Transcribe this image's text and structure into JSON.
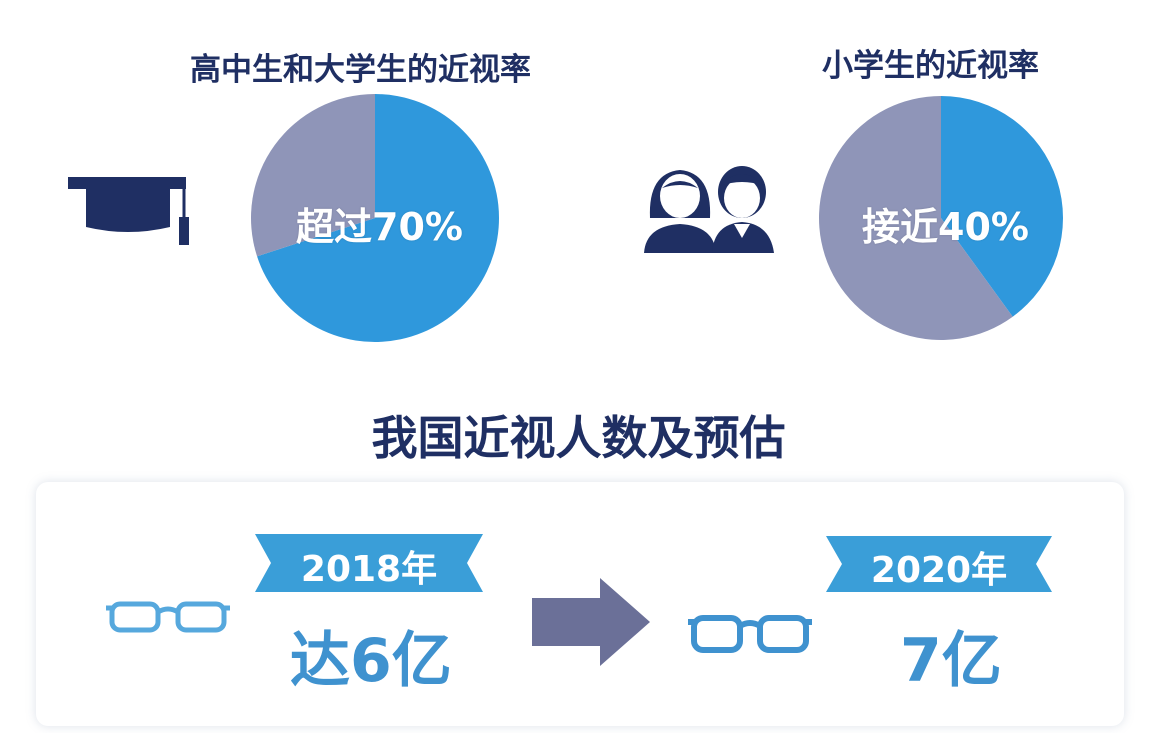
{
  "chart_data": [
    {
      "type": "pie",
      "title": "高中生和大学生的近视率",
      "center_label": "超过70%",
      "slices": [
        {
          "value": 70,
          "color": "#2f98dc"
        },
        {
          "value": 30,
          "color": "#8f95b8"
        }
      ]
    },
    {
      "type": "pie",
      "title": "小学生的近视率",
      "center_label": "接近40%",
      "slices": [
        {
          "value": 40,
          "color": "#2f98dc"
        },
        {
          "value": 60,
          "color": "#8f95b8"
        }
      ]
    }
  ],
  "section": {
    "title": "我国近视人数及预估"
  },
  "estimates": [
    {
      "year": "2018年",
      "value": "达6亿"
    },
    {
      "year": "2020年",
      "value": "7亿"
    }
  ],
  "colors": {
    "navy": "#1f2f63",
    "blue": "#2f98dc",
    "gray": "#8f95b8",
    "ribbon": "#3a9ed8",
    "value": "#3f92cf"
  },
  "icons": {
    "pie1": "graduation-cap-icon",
    "pie2": "students-icon",
    "glasses": "glasses-icon",
    "arrow": "arrow-right-icon"
  }
}
